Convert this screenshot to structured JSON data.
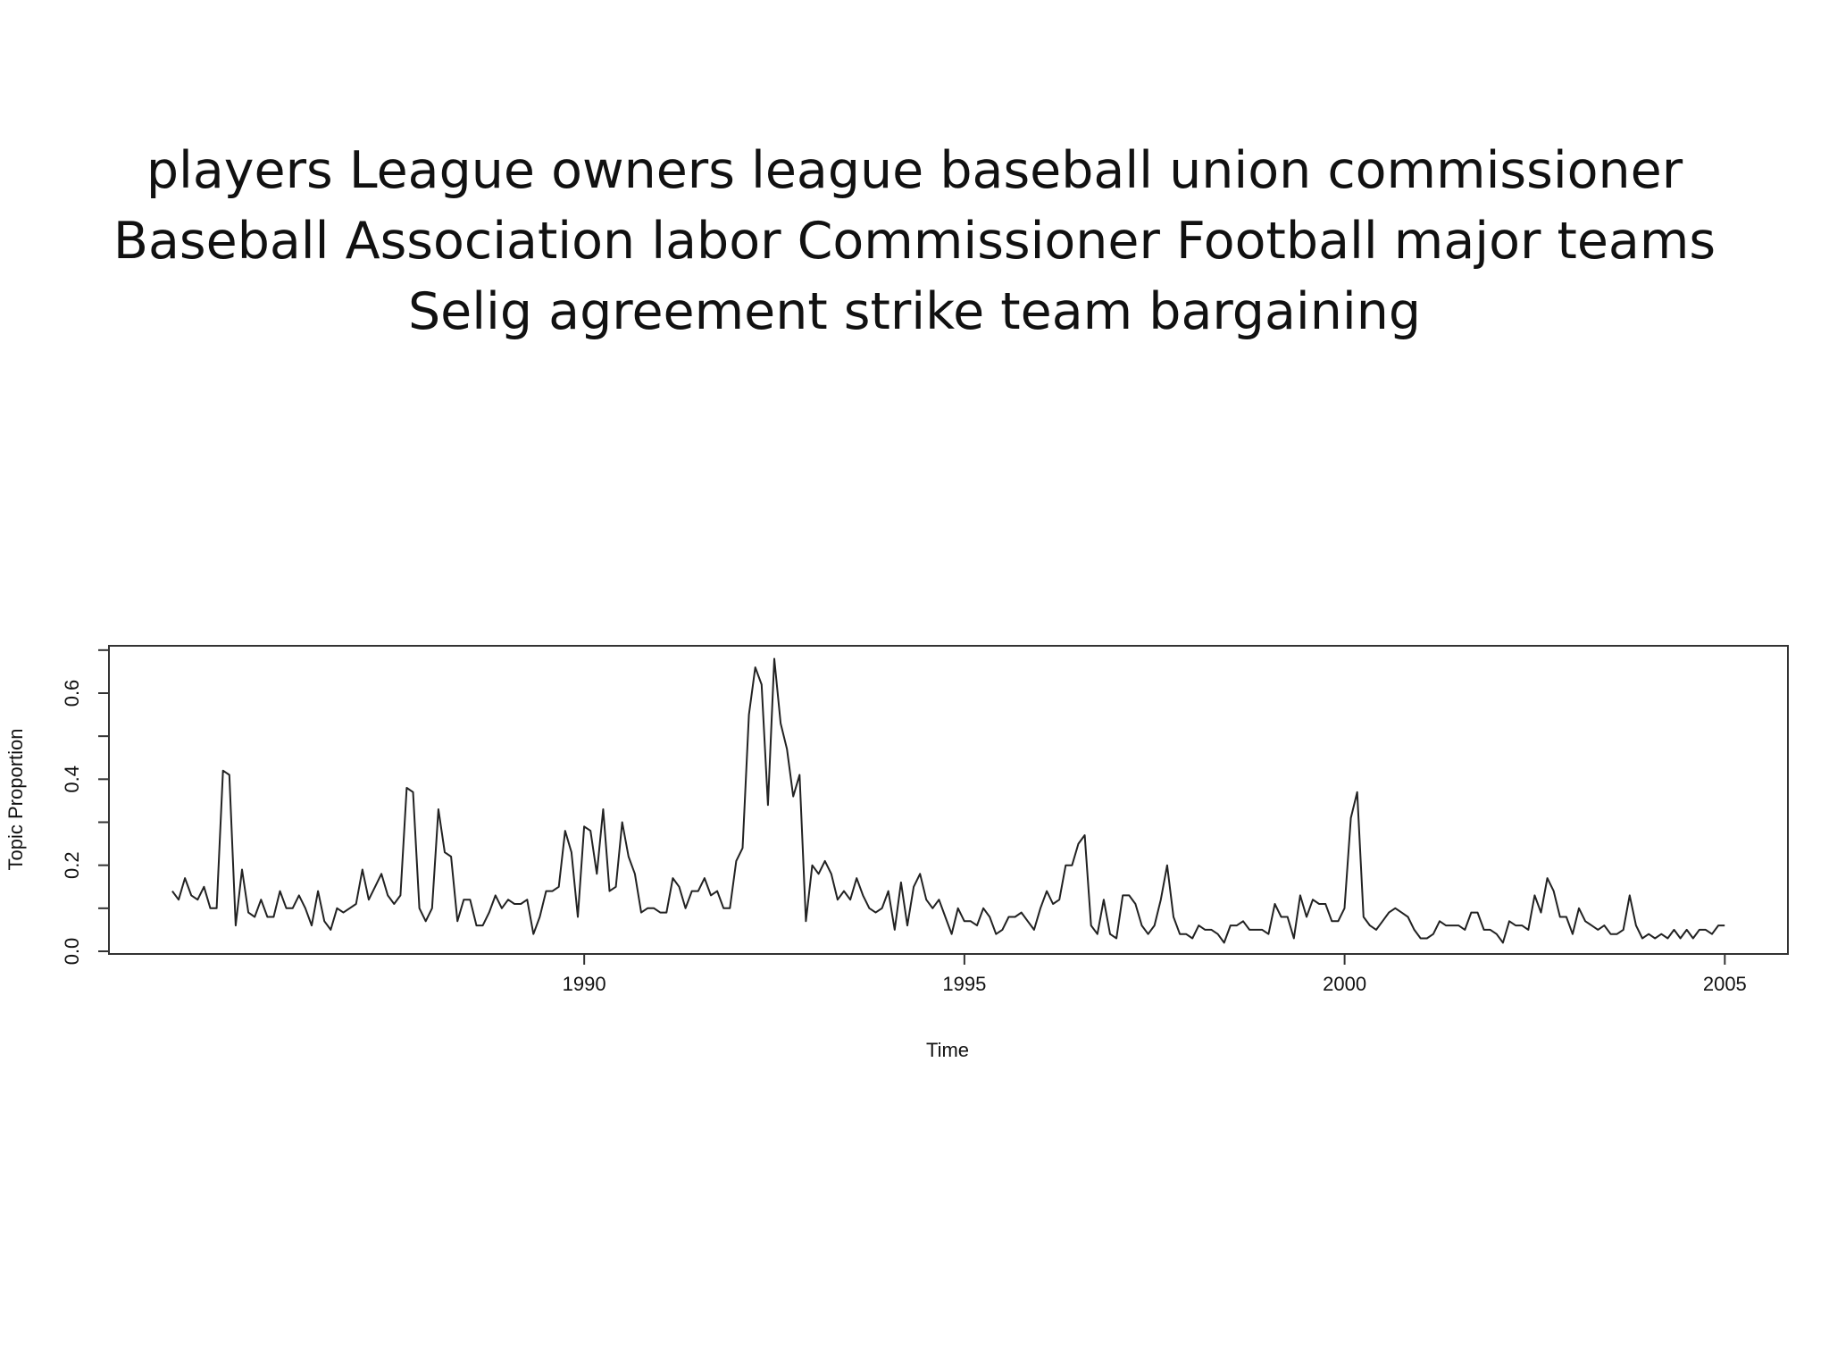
{
  "slide": {
    "title_lines": [
      "players League owners league baseball union commissioner",
      "Baseball Association labor Commissioner Football major teams",
      "Selig agreement strike team bargaining"
    ]
  },
  "chart_data": {
    "type": "line",
    "title": "",
    "xlabel": "Time",
    "ylabel": "Topic Proportion",
    "xlim": [
      1983.75,
      2005.83
    ],
    "ylim": [
      0.0,
      0.72
    ],
    "x_ticks": [
      1990,
      1995,
      2000,
      2005
    ],
    "x_tick_labels": [
      "1990",
      "1995",
      "2000",
      "2005"
    ],
    "y_ticks": [
      0.0,
      0.1,
      0.2,
      0.3,
      0.4,
      0.5,
      0.6,
      0.7
    ],
    "y_tick_labels": [
      "0.0",
      "0.2",
      "0.4",
      "0.6"
    ],
    "y_labeled_ticks": [
      0.0,
      0.2,
      0.4,
      0.6
    ],
    "grid": false,
    "line_color": "#222222",
    "series": [
      {
        "x_start": 1984.583,
        "x_step": 0.08333,
        "values": [
          0.14,
          0.12,
          0.17,
          0.13,
          0.12,
          0.15,
          0.1,
          0.1,
          0.42,
          0.41,
          0.06,
          0.19,
          0.09,
          0.08,
          0.12,
          0.08,
          0.08,
          0.14,
          0.1,
          0.1,
          0.13,
          0.1,
          0.06,
          0.14,
          0.07,
          0.05,
          0.1,
          0.09,
          0.1,
          0.11,
          0.19,
          0.12,
          0.15,
          0.18,
          0.13,
          0.11,
          0.13,
          0.38,
          0.37,
          0.1,
          0.07,
          0.1,
          0.33,
          0.23,
          0.22,
          0.07,
          0.12,
          0.12,
          0.06,
          0.06,
          0.09,
          0.13,
          0.1,
          0.12,
          0.11,
          0.11,
          0.12,
          0.04,
          0.08,
          0.14,
          0.14,
          0.15,
          0.28,
          0.23,
          0.08,
          0.29,
          0.28,
          0.18,
          0.33,
          0.14,
          0.15,
          0.3,
          0.22,
          0.18,
          0.09,
          0.1,
          0.1,
          0.09,
          0.09,
          0.17,
          0.15,
          0.1,
          0.14,
          0.14,
          0.17,
          0.13,
          0.14,
          0.1,
          0.1,
          0.21,
          0.24,
          0.55,
          0.66,
          0.62,
          0.34,
          0.68,
          0.53,
          0.47,
          0.36,
          0.41,
          0.07,
          0.2,
          0.18,
          0.21,
          0.18,
          0.12,
          0.14,
          0.12,
          0.17,
          0.13,
          0.1,
          0.09,
          0.1,
          0.14,
          0.05,
          0.16,
          0.06,
          0.15,
          0.18,
          0.12,
          0.1,
          0.12,
          0.08,
          0.04,
          0.1,
          0.07,
          0.07,
          0.06,
          0.1,
          0.08,
          0.04,
          0.05,
          0.08,
          0.08,
          0.09,
          0.07,
          0.05,
          0.1,
          0.14,
          0.11,
          0.12,
          0.2,
          0.2,
          0.25,
          0.27,
          0.06,
          0.04,
          0.12,
          0.04,
          0.03,
          0.13,
          0.13,
          0.11,
          0.06,
          0.04,
          0.06,
          0.12,
          0.2,
          0.08,
          0.04,
          0.04,
          0.03,
          0.06,
          0.05,
          0.05,
          0.04,
          0.02,
          0.06,
          0.06,
          0.07,
          0.05,
          0.05,
          0.05,
          0.04,
          0.11,
          0.08,
          0.08,
          0.03,
          0.13,
          0.08,
          0.12,
          0.11,
          0.11,
          0.07,
          0.07,
          0.1,
          0.31,
          0.37,
          0.08,
          0.06,
          0.05,
          0.07,
          0.09,
          0.1,
          0.09,
          0.08,
          0.05,
          0.03,
          0.03,
          0.04,
          0.07,
          0.06,
          0.06,
          0.06,
          0.05,
          0.09,
          0.09,
          0.05,
          0.05,
          0.04,
          0.02,
          0.07,
          0.06,
          0.06,
          0.05,
          0.13,
          0.09,
          0.17,
          0.14,
          0.08,
          0.08,
          0.04,
          0.1,
          0.07,
          0.06,
          0.05,
          0.06,
          0.04,
          0.04,
          0.05,
          0.13,
          0.06,
          0.03,
          0.04,
          0.03,
          0.04,
          0.03,
          0.05,
          0.03,
          0.05,
          0.03,
          0.05,
          0.05,
          0.04,
          0.06,
          0.06
        ]
      }
    ]
  }
}
